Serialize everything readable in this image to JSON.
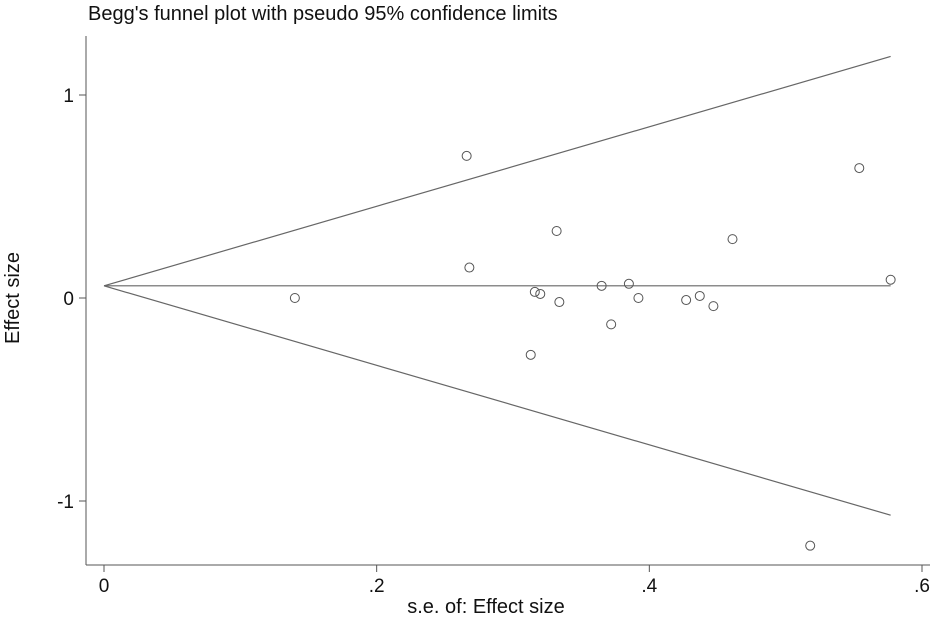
{
  "chart_data": {
    "type": "scatter",
    "title": "Begg's funnel plot with pseudo 95% confidence limits",
    "xlabel": "s.e. of: Effect size",
    "ylabel": "Effect size",
    "xlim": [
      0,
      0.6
    ],
    "ylim": [
      -1.2,
      1.2
    ],
    "xticks": [
      0,
      0.2,
      0.4,
      0.6
    ],
    "xtick_labels": [
      "0",
      ".2",
      ".4",
      ".6"
    ],
    "yticks": [
      -1,
      0,
      1
    ],
    "ytick_labels": [
      "-1",
      "0",
      "1"
    ],
    "grid": false,
    "pooled_effect": 0.06,
    "confidence_limits": {
      "upper": [
        [
          0,
          0.06
        ],
        [
          0.577,
          1.19
        ]
      ],
      "lower": [
        [
          0,
          0.06
        ],
        [
          0.577,
          -1.07
        ]
      ]
    },
    "points": [
      {
        "x": 0.14,
        "y": 0.0
      },
      {
        "x": 0.266,
        "y": 0.7
      },
      {
        "x": 0.268,
        "y": 0.15
      },
      {
        "x": 0.313,
        "y": -0.28
      },
      {
        "x": 0.316,
        "y": 0.03
      },
      {
        "x": 0.32,
        "y": 0.02
      },
      {
        "x": 0.332,
        "y": 0.33
      },
      {
        "x": 0.334,
        "y": -0.02
      },
      {
        "x": 0.365,
        "y": 0.06
      },
      {
        "x": 0.372,
        "y": -0.13
      },
      {
        "x": 0.385,
        "y": 0.07
      },
      {
        "x": 0.392,
        "y": 0.0
      },
      {
        "x": 0.427,
        "y": -0.01
      },
      {
        "x": 0.437,
        "y": 0.01
      },
      {
        "x": 0.447,
        "y": -0.04
      },
      {
        "x": 0.461,
        "y": 0.29
      },
      {
        "x": 0.518,
        "y": -1.22
      },
      {
        "x": 0.554,
        "y": 0.64
      },
      {
        "x": 0.577,
        "y": 0.09
      }
    ]
  }
}
